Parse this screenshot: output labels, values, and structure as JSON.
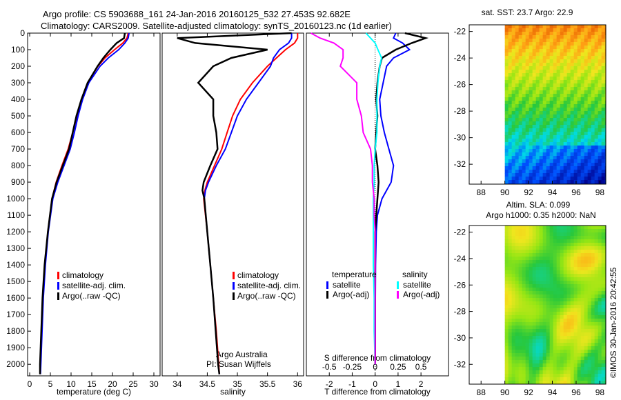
{
  "title_line1": "Argo profile: CS 5903688_161 24-Jan-2016 20160125_532 27.453S 92.682E",
  "title_line2": "Climatology: CARS2009. Satellite-adjusted climatology: synTS_20160123.nc (1d earlier)",
  "sst_title": "sat. SST: 23.7 Argo: 22.9",
  "sla_title1": "Altim. SLA: 0.099",
  "sla_title2": "Argo h1000: 0.35 h2000: NaN",
  "credit": "©IMOS 30-Jan-2016 20:42:55",
  "credit_text": "Argo Australia",
  "pi_text": "PI: Susan Wijffels",
  "colors": {
    "climatology": "#ff0000",
    "satellite": "#0000ff",
    "argo": "#000000",
    "sal_sat": "#00ffff",
    "sal_argo": "#ff00ff"
  },
  "chart_data": [
    {
      "type": "line",
      "xlabel": "temperature (deg C)",
      "ylabel": "depth",
      "xlim": [
        -0.5,
        31.5
      ],
      "ylim": [
        2070,
        0
      ],
      "xticks": [
        0,
        5,
        10,
        15,
        20,
        25,
        30
      ],
      "yticks": [
        0,
        100,
        200,
        300,
        400,
        500,
        600,
        700,
        800,
        900,
        1000,
        1100,
        1200,
        1300,
        1400,
        1500,
        1600,
        1700,
        1800,
        1900,
        2000
      ],
      "legend": [
        "climatology",
        "satellite-adj. clim.",
        "Argo(..raw -QC)"
      ],
      "legend_placement": "lower-center",
      "depth": [
        0,
        30,
        60,
        100,
        150,
        200,
        300,
        400,
        500,
        600,
        700,
        800,
        900,
        1000,
        1200,
        1400,
        1600,
        1800,
        2000,
        2060
      ],
      "series": [
        {
          "name": "climatology",
          "values": [
            23.8,
            23.5,
            22.5,
            20.5,
            18.2,
            16.5,
            14,
            12.5,
            11.4,
            10.4,
            9.3,
            7.8,
            6.4,
            5.4,
            4.4,
            3.7,
            3.2,
            2.9,
            2.6,
            2.5
          ]
        },
        {
          "name": "satellite-adj. clim.",
          "values": [
            24,
            23.8,
            23,
            21.5,
            19,
            17,
            14.3,
            12.8,
            11.7,
            10.8,
            9.8,
            8.3,
            6.8,
            5.6,
            4.5,
            3.8,
            3.3,
            3,
            2.7,
            2.6
          ]
        },
        {
          "name": "Argo(..raw -QC)",
          "values": [
            23,
            22.8,
            21,
            19.5,
            17.8,
            16.4,
            14,
            12.5,
            11.3,
            10.4,
            9.5,
            8,
            6.5,
            5.4,
            4.4,
            3.6,
            3.1,
            2.8,
            2.5,
            2.5
          ]
        }
      ]
    },
    {
      "type": "line",
      "xlabel": "salinity",
      "xlim": [
        33.75,
        36.1
      ],
      "ylim": [
        2070,
        0
      ],
      "xticks": [
        34,
        34.5,
        35,
        35.5,
        36
      ],
      "legend": [
        "climatology",
        "satellite-adj. clim.",
        "Argo(..raw -QC)"
      ],
      "legend_placement": "lower-center",
      "depth": [
        0,
        30,
        60,
        100,
        150,
        200,
        300,
        400,
        500,
        600,
        700,
        800,
        900,
        950,
        1000,
        1200,
        1400,
        1600,
        1800,
        2000,
        2060
      ],
      "series": [
        {
          "name": "climatology",
          "values": [
            36,
            36,
            35.95,
            35.8,
            35.65,
            35.5,
            35.25,
            35.05,
            34.92,
            34.83,
            34.74,
            34.62,
            34.5,
            34.46,
            34.44,
            34.5,
            34.55,
            34.6,
            34.65,
            34.69,
            34.7
          ]
        },
        {
          "name": "satellite-adj. clim.",
          "values": [
            35.9,
            35.9,
            35.85,
            35.7,
            35.6,
            35.55,
            35.35,
            35.15,
            35.0,
            34.9,
            34.8,
            34.65,
            34.52,
            34.47,
            34.45,
            34.5,
            34.55,
            34.6,
            34.64,
            34.68,
            34.7
          ]
        },
        {
          "name": "Argo(..raw -QC)",
          "values": [
            35.9,
            34.0,
            34.3,
            35.5,
            34.9,
            34.6,
            34.35,
            34.6,
            34.6,
            34.65,
            34.67,
            34.55,
            34.44,
            34.42,
            34.45,
            34.5,
            34.55,
            34.6,
            34.64,
            34.68,
            34.7
          ]
        }
      ]
    },
    {
      "type": "line",
      "xlabel": "T difference from climatology",
      "x2label": "S difference from climatology",
      "xlim": [
        -3,
        3.2
      ],
      "ylim": [
        2070,
        0
      ],
      "xticks": [
        -2,
        -1,
        0,
        1,
        2
      ],
      "x2ticks": [
        "-0.5",
        "-0.25",
        "0",
        "0.25",
        "0.5"
      ],
      "x2tick_values": [
        -0.5,
        -0.25,
        0,
        0.25,
        0.5
      ],
      "legend_headers": [
        "temperature",
        "salinity"
      ],
      "legend": [
        "satellite",
        "Argo(-adj)",
        "satellite",
        "Argo(-adj)"
      ],
      "legend_placement": "lower-center",
      "depth": [
        0,
        30,
        60,
        100,
        150,
        200,
        300,
        400,
        500,
        600,
        700,
        800,
        900,
        1000,
        1100,
        1200,
        1400,
        1600,
        1800,
        2000
      ],
      "series": [
        {
          "name": "temperature satellite",
          "values": [
            0.9,
            0.8,
            1.2,
            1.5,
            0.8,
            0.5,
            0.35,
            0.2,
            0.25,
            0.4,
            0.6,
            0.8,
            0.7,
            0.3,
            0.1,
            0.05,
            0.02,
            0.01,
            0.01,
            0.01
          ]
        },
        {
          "name": "temperature Argo(-adj)",
          "values": [
            1.3,
            2.2,
            1.6,
            0.9,
            0.3,
            0.2,
            0.1,
            0.05,
            0.1,
            0.05,
            0.0,
            0.1,
            0.15,
            0.1,
            0.05,
            0.0,
            0.0,
            0.0,
            0.0,
            0.0
          ]
        },
        {
          "name": "salinity satellite",
          "values": [
            -0.1,
            -0.05,
            0.0,
            0.03,
            0.07,
            0.05,
            0.03,
            0.02,
            0.02,
            0.02,
            0.0,
            -0.01,
            -0.01,
            -0.02,
            -0.02,
            -0.02,
            -0.02,
            -0.01,
            -0.01,
            0.0
          ]
        },
        {
          "name": "salinity Argo(-adj)",
          "values": [
            -0.7,
            -0.6,
            -0.45,
            -0.35,
            -0.35,
            -0.38,
            -0.2,
            -0.2,
            -0.15,
            -0.13,
            -0.05,
            -0.03,
            -0.03,
            -0.01,
            -0.01,
            0.0,
            0.0,
            0.0,
            0.0,
            0.0
          ]
        }
      ]
    },
    {
      "type": "heatmap",
      "title": "sat. SST: 23.7 Argo: 22.9",
      "xlim": [
        87,
        98.5
      ],
      "ylim": [
        -33.5,
        -21.5
      ],
      "xticks": [
        88,
        90,
        92,
        94,
        96,
        98
      ],
      "yticks": [
        -22,
        -24,
        -26,
        -28,
        -30,
        -32
      ],
      "data_lon_range": [
        90,
        98.5
      ]
    },
    {
      "type": "heatmap",
      "title": "Altim. SLA: 0.099",
      "xlim": [
        87,
        98.5
      ],
      "ylim": [
        -33.5,
        -21.5
      ],
      "xticks": [
        88,
        90,
        92,
        94,
        96,
        98
      ],
      "yticks": [
        -22,
        -24,
        -26,
        -28,
        -30,
        -32
      ],
      "data_lon_range": [
        90,
        98.5
      ]
    }
  ]
}
